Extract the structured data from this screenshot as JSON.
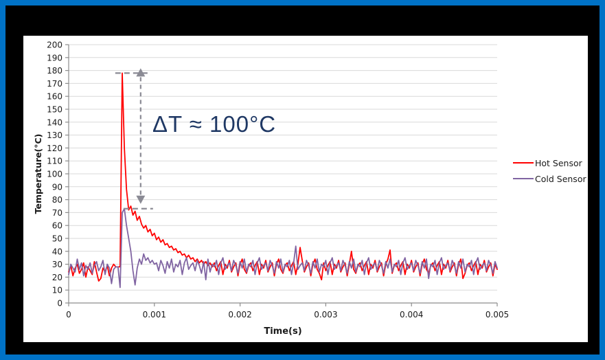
{
  "slide": {
    "border_color": "#0072C6",
    "background_color": "#000000",
    "chart_background": "#FFFFFF"
  },
  "annotation_label": "ΔT ≈ 100°C",
  "annotation_color": "#1F3864",
  "chart_data": {
    "type": "line",
    "title": "",
    "xlabel": "Time(s)",
    "ylabel": "Temperature(°C)",
    "xlim": [
      0,
      0.005
    ],
    "ylim": [
      0,
      200
    ],
    "x_ticks": [
      0,
      0.001,
      0.002,
      0.003,
      0.004,
      0.005
    ],
    "x_tick_labels": [
      "0",
      "0.001",
      "0.002",
      "0.003",
      "0.004",
      "0.005"
    ],
    "y_tick_step": 10,
    "grid": "horizontal",
    "legend_position": "right-outside",
    "colors": {
      "grid": "#D9D9D9",
      "axis": "#8C8C8C",
      "arrow": "#8A8A94",
      "tick_text": "#1A1A1A"
    },
    "annotation": {
      "text": "ΔT ≈ 100°C",
      "hi": 178,
      "lo": 73,
      "x_line": 0.00084
    },
    "t_start": 0,
    "t_step": 2.5e-05,
    "series": [
      {
        "name": "Hot Sensor",
        "color": "#FF0000",
        "values": [
          24,
          29,
          21,
          27,
          30,
          23,
          26,
          31,
          20,
          28,
          25,
          22,
          32,
          24,
          17,
          19,
          27,
          24,
          29,
          21,
          27,
          30,
          28,
          28,
          28,
          178,
          120,
          88,
          72,
          75,
          68,
          71,
          64,
          67,
          61,
          58,
          60,
          55,
          57,
          52,
          54,
          49,
          51,
          47,
          49,
          45,
          46,
          43,
          44,
          41,
          42,
          39,
          40,
          37,
          38,
          35,
          37,
          34,
          35,
          32,
          34,
          31,
          33,
          30,
          32,
          29,
          31,
          28,
          31,
          25,
          29,
          32,
          22,
          30,
          27,
          33,
          24,
          28,
          31,
          21,
          30,
          34,
          26,
          23,
          29,
          31,
          25,
          29,
          32,
          22,
          30,
          27,
          33,
          24,
          28,
          31,
          21,
          30,
          34,
          26,
          23,
          29,
          31,
          25,
          29,
          32,
          22,
          30,
          43,
          33,
          24,
          28,
          31,
          21,
          30,
          34,
          26,
          23,
          18,
          31,
          25,
          29,
          32,
          22,
          30,
          27,
          33,
          24,
          28,
          31,
          21,
          30,
          40,
          26,
          23,
          29,
          31,
          25,
          29,
          32,
          22,
          30,
          27,
          33,
          24,
          28,
          31,
          21,
          30,
          34,
          41,
          23,
          29,
          31,
          25,
          29,
          32,
          22,
          30,
          27,
          33,
          24,
          28,
          31,
          21,
          30,
          34,
          26,
          23,
          29,
          31,
          25,
          29,
          32,
          22,
          30,
          27,
          33,
          24,
          28,
          31,
          21,
          30,
          34,
          19,
          23,
          29,
          31,
          25,
          29,
          32,
          22,
          30,
          27,
          33,
          24,
          28,
          31,
          21,
          30,
          26
        ]
      },
      {
        "name": "Cold Sensor",
        "color": "#8064A2",
        "values": [
          22,
          30,
          27,
          24,
          34,
          26,
          31,
          21,
          29,
          26,
          31,
          23,
          29,
          32,
          25,
          28,
          33,
          22,
          30,
          27,
          15,
          26,
          28,
          28,
          12,
          70,
          73,
          60,
          50,
          40,
          25,
          14,
          27,
          34,
          30,
          38,
          33,
          35,
          31,
          33,
          30,
          31,
          25,
          33,
          29,
          23,
          32,
          27,
          34,
          24,
          30,
          28,
          33,
          22,
          31,
          35,
          26,
          29,
          31,
          25,
          33,
          29,
          23,
          32,
          18,
          34,
          24,
          30,
          28,
          33,
          22,
          31,
          35,
          26,
          29,
          31,
          25,
          33,
          29,
          23,
          32,
          27,
          34,
          24,
          30,
          28,
          33,
          22,
          31,
          35,
          26,
          29,
          31,
          25,
          33,
          29,
          23,
          32,
          27,
          34,
          24,
          30,
          28,
          33,
          22,
          31,
          44,
          26,
          29,
          31,
          25,
          33,
          29,
          23,
          32,
          27,
          34,
          24,
          30,
          28,
          33,
          22,
          31,
          35,
          26,
          29,
          31,
          25,
          33,
          29,
          23,
          32,
          27,
          34,
          24,
          30,
          28,
          33,
          22,
          31,
          35,
          26,
          29,
          31,
          25,
          33,
          29,
          23,
          32,
          27,
          34,
          24,
          30,
          28,
          33,
          22,
          31,
          35,
          26,
          29,
          31,
          25,
          33,
          29,
          23,
          32,
          27,
          34,
          19,
          30,
          28,
          33,
          22,
          31,
          35,
          26,
          29,
          31,
          25,
          33,
          29,
          23,
          32,
          27,
          34,
          24,
          30,
          28,
          33,
          22,
          31,
          35,
          26,
          29,
          31,
          25,
          33,
          29,
          23,
          32,
          27
        ]
      }
    ]
  }
}
